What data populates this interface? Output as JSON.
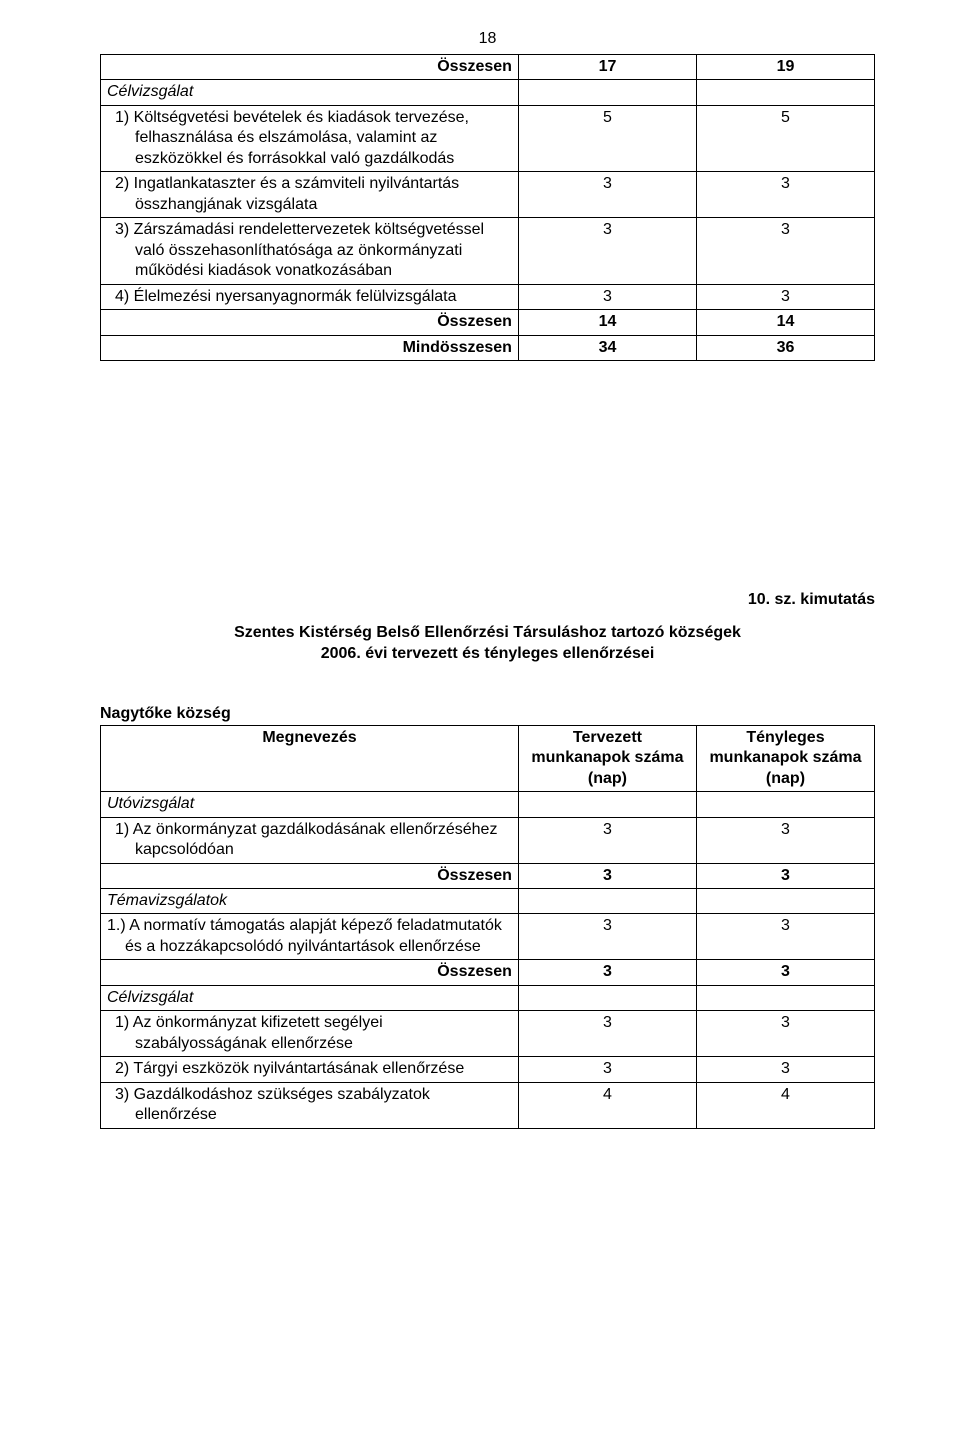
{
  "page_number": "18",
  "table1": {
    "rows": [
      {
        "label": "Összesen",
        "v1": "17",
        "v2": "19",
        "bold_row": true,
        "italic": false,
        "align": "right",
        "v_bold": true
      },
      {
        "label": "Célvizsgálat",
        "v1": "",
        "v2": "",
        "bold_row": false,
        "italic": true,
        "align": "left",
        "v_bold": false
      },
      {
        "label": "1) Költségvetési bevételek és kiadások tervezése, felhasználása és elszámolása, valamint az eszközökkel és forrásokkal való gazdálkodás",
        "v1": "5",
        "v2": "5",
        "bold_row": false,
        "italic": false,
        "align": "left",
        "v_bold": false,
        "indent": true
      },
      {
        "label": "2) Ingatlankataszter és a számviteli nyilvántartás összhangjának vizsgálata",
        "v1": "3",
        "v2": "3",
        "bold_row": false,
        "italic": false,
        "align": "left",
        "v_bold": false,
        "indent": true
      },
      {
        "label": "3) Zárszámadási rendelettervezetek költségvetéssel való összehasonlíthatósága az önkormányzati működési kiadások vonatkozásában",
        "v1": "3",
        "v2": "3",
        "bold_row": false,
        "italic": false,
        "align": "left",
        "v_bold": false,
        "indent": true
      },
      {
        "label": "4) Élelmezési nyersanyagnormák felülvizsgálata",
        "v1": "3",
        "v2": "3",
        "bold_row": false,
        "italic": false,
        "align": "left",
        "v_bold": false,
        "indent": true
      },
      {
        "label": "Összesen",
        "v1": "14",
        "v2": "14",
        "bold_row": true,
        "italic": false,
        "align": "right",
        "v_bold": true
      },
      {
        "label": "Mindösszesen",
        "v1": "34",
        "v2": "36",
        "bold_row": true,
        "italic": false,
        "align": "right",
        "v_bold": true
      }
    ]
  },
  "kimsz": "10. sz. kimutatás",
  "section_title_l1": "Szentes Kistérség Belső Ellenőrzési Társuláshoz tartozó községek",
  "section_title_l2": "2006. évi tervezett és tényleges ellenőrzései",
  "village": "Nagytőke község",
  "table2": {
    "head": {
      "c1": "Megnevezés",
      "c2": "Tervezett munkanapok száma (nap)",
      "c3": "Tényleges munkanapok száma (nap)"
    },
    "rows": [
      {
        "label": "Utóvizsgálat",
        "v1": "",
        "v2": "",
        "bold_row": false,
        "italic": true,
        "align": "left",
        "v_bold": false
      },
      {
        "label": "1) Az önkormányzat gazdálkodásának ellenőrzéséhez kapcsolódóan",
        "v1": "3",
        "v2": "3",
        "bold_row": false,
        "italic": false,
        "align": "left",
        "v_bold": false,
        "indent": true
      },
      {
        "label": "Összesen",
        "v1": "3",
        "v2": "3",
        "bold_row": true,
        "italic": false,
        "align": "right",
        "v_bold": true
      },
      {
        "label": "Témavizsgálatok",
        "v1": "",
        "v2": "",
        "bold_row": false,
        "italic": true,
        "align": "left",
        "v_bold": false
      },
      {
        "label": "1.) A normatív támogatás alapját képező feladatmutatók és a hozzákapcsolódó nyilvántartások ellenőrzése",
        "v1": "3",
        "v2": "3",
        "bold_row": false,
        "italic": false,
        "align": "left",
        "v_bold": false,
        "indent2": true
      },
      {
        "label": "Összesen",
        "v1": "3",
        "v2": "3",
        "bold_row": true,
        "italic": false,
        "align": "right",
        "v_bold": true
      },
      {
        "label": "Célvizsgálat",
        "v1": "",
        "v2": "",
        "bold_row": false,
        "italic": true,
        "align": "left",
        "v_bold": false
      },
      {
        "label": "1) Az önkormányzat kifizetett segélyei szabályosságának ellenőrzése",
        "v1": "3",
        "v2": "3",
        "bold_row": false,
        "italic": false,
        "align": "left",
        "v_bold": false,
        "indent": true
      },
      {
        "label": "2) Tárgyi eszközök nyilvántartásának ellenőrzése",
        "v1": "3",
        "v2": "3",
        "bold_row": false,
        "italic": false,
        "align": "left",
        "v_bold": false,
        "indent": true
      },
      {
        "label": "3) Gazdálkodáshoz szükséges szabályzatok ellenőrzése",
        "v1": "4",
        "v2": "4",
        "bold_row": false,
        "italic": false,
        "align": "left",
        "v_bold": false,
        "indent": true
      }
    ]
  }
}
